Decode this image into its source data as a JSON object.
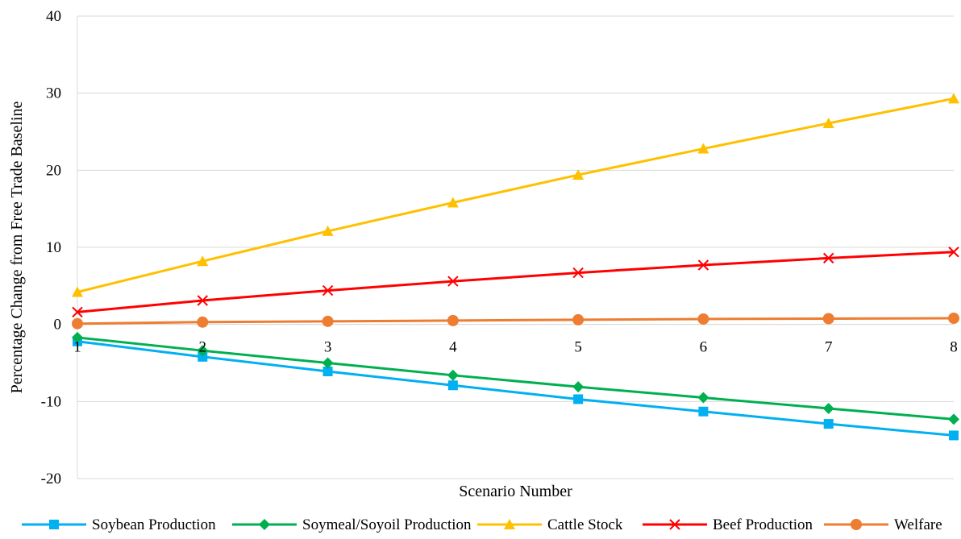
{
  "chart_data": {
    "type": "line",
    "title": "",
    "xlabel": "Scenario Number",
    "ylabel": "Percentage Change from Free Trade Baseline",
    "x": [
      1,
      2,
      3,
      4,
      5,
      6,
      7,
      8
    ],
    "x_tick_labels": [
      "1",
      "2",
      "3",
      "4",
      "5",
      "6",
      "7",
      "8"
    ],
    "ylim": [
      -20,
      40
    ],
    "y_ticks": [
      -20,
      -10,
      0,
      10,
      20,
      30,
      40
    ],
    "y_tick_labels": [
      "-20",
      "-10",
      "0",
      "10",
      "20",
      "30",
      "40"
    ],
    "grid": "horizontal",
    "legend_position": "bottom",
    "series": [
      {
        "name": "Soybean Production",
        "color": "#00B0F0",
        "marker": "square",
        "values": [
          -2.2,
          -4.2,
          -6.1,
          -7.9,
          -9.7,
          -11.3,
          -12.9,
          -14.4
        ]
      },
      {
        "name": "Soymeal/Soyoil Production",
        "color": "#00B050",
        "marker": "diamond",
        "values": [
          -1.7,
          -3.4,
          -5.0,
          -6.6,
          -8.1,
          -9.5,
          -10.9,
          -12.3
        ]
      },
      {
        "name": "Cattle Stock",
        "color": "#FFC000",
        "marker": "triangle",
        "values": [
          4.2,
          8.2,
          12.1,
          15.8,
          19.4,
          22.8,
          26.1,
          29.3
        ]
      },
      {
        "name": "Beef Production",
        "color": "#FF0000",
        "marker": "x",
        "values": [
          1.6,
          3.1,
          4.4,
          5.6,
          6.7,
          7.7,
          8.6,
          9.4
        ]
      },
      {
        "name": "Welfare",
        "color": "#ED7D31",
        "marker": "circle",
        "values": [
          0.1,
          0.3,
          0.4,
          0.5,
          0.6,
          0.7,
          0.75,
          0.8
        ]
      }
    ]
  }
}
